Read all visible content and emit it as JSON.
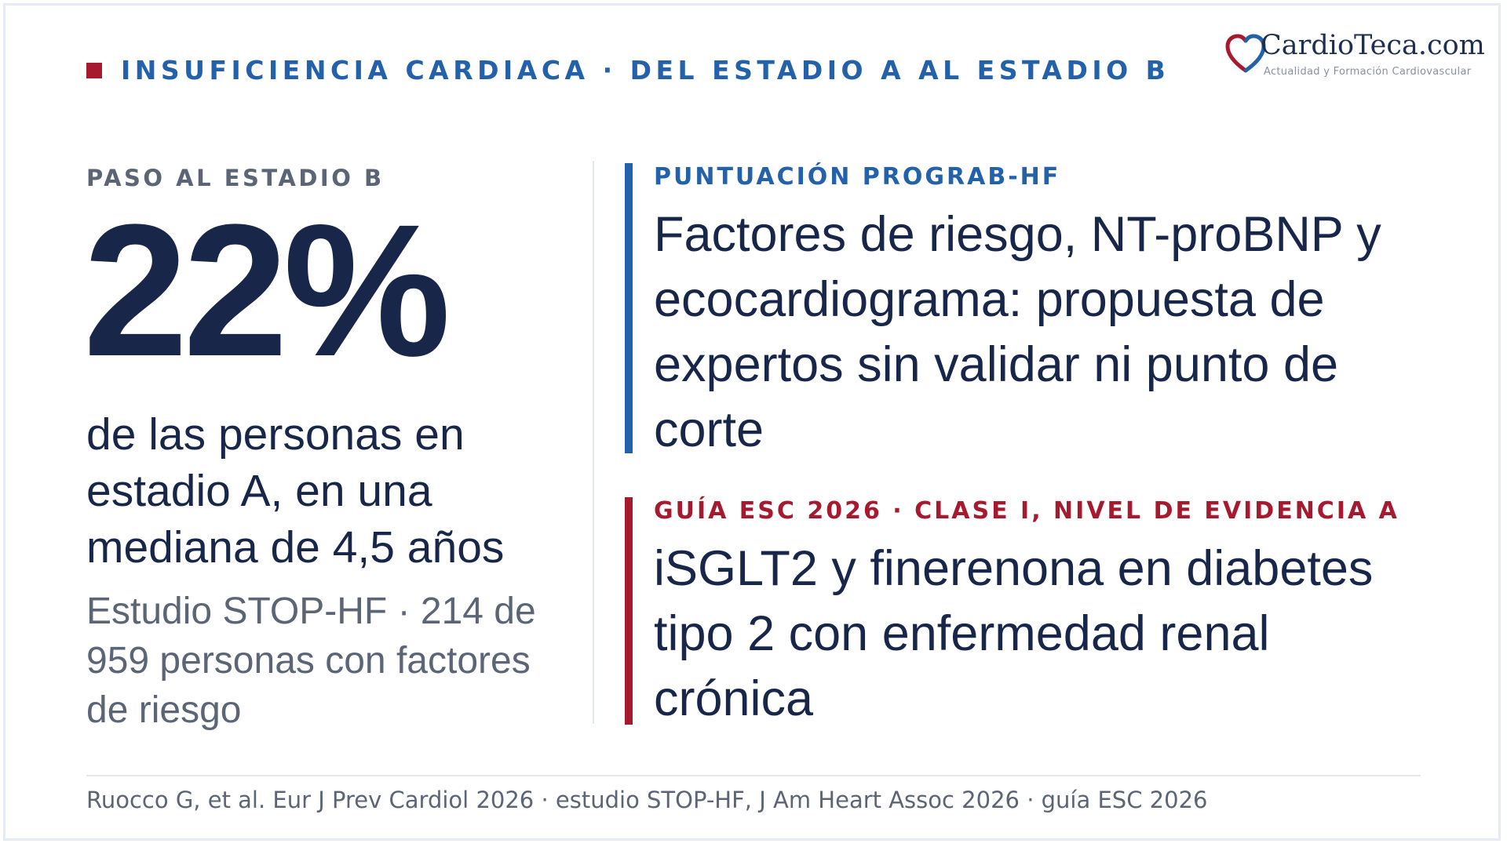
{
  "header": {
    "kicker": "INSUFICIENCIA CARDIACA · DEL ESTADIO A AL ESTADIO B"
  },
  "logo": {
    "name": "CardioTeca.com",
    "tagline": "Actualidad y Formación Cardiovascular"
  },
  "left": {
    "label": "PASO AL ESTADIO B",
    "stat": "22%",
    "description": "de las personas en estadio A, en una mediana de 4,5 años",
    "source": "Estudio STOP-HF · 214 de 959 personas con factores de riesgo"
  },
  "cards": [
    {
      "label": "PUNTUACIÓN PROGRAB-HF",
      "text": "Factores de riesgo, NT-proBNP y ecocardiograma: propuesta de expertos sin validar ni punto de corte"
    },
    {
      "label": "GUÍA ESC 2026 · CLASE I, NIVEL DE EVIDENCIA A",
      "text": "iSGLT2 y finerenona en diabetes tipo 2 con enfermedad renal crónica"
    }
  ],
  "footer": {
    "references": "Ruocco G, et al. Eur J Prev Cardiol 2026 · estudio STOP-HF, J Am Heart Assoc 2026 · guía ESC 2026"
  },
  "colors": {
    "navy": "#18264a",
    "blue": "#2361aa",
    "red": "#a6192e",
    "gray": "#5b6575"
  }
}
